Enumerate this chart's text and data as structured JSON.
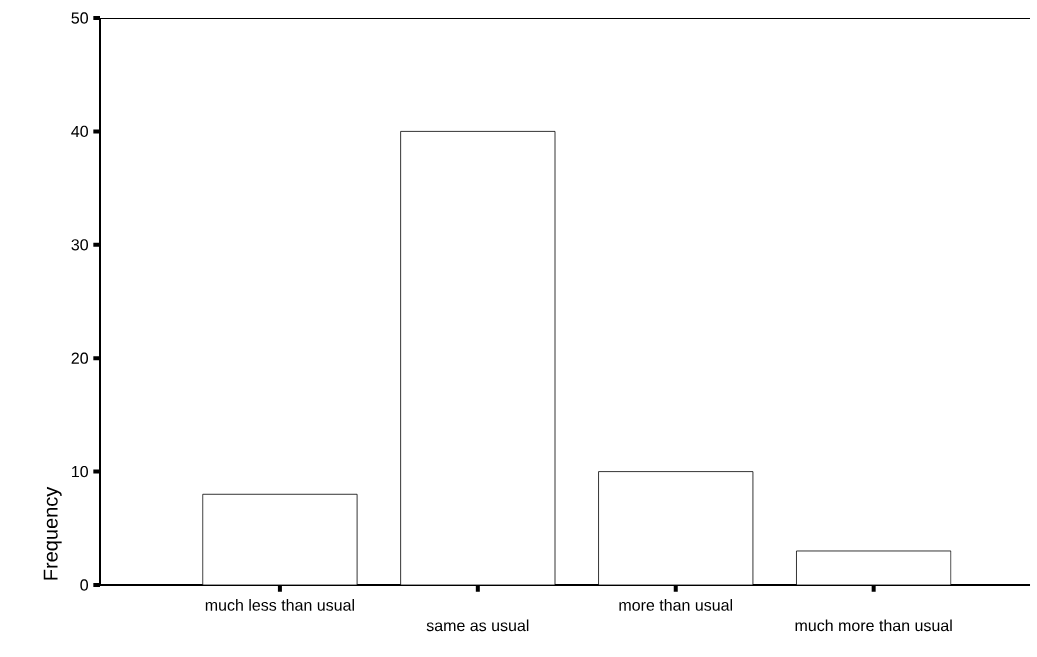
{
  "chart_data": {
    "type": "bar",
    "ylabel": "Frequency",
    "categories": [
      "much less than usual",
      "same as usual",
      "more than usual",
      "much more than usual"
    ],
    "values": [
      8,
      40,
      10,
      3
    ],
    "color": "#ffffff",
    "ylim": [
      0,
      50
    ],
    "yticks": [
      0,
      10,
      20,
      30,
      40,
      50
    ]
  }
}
